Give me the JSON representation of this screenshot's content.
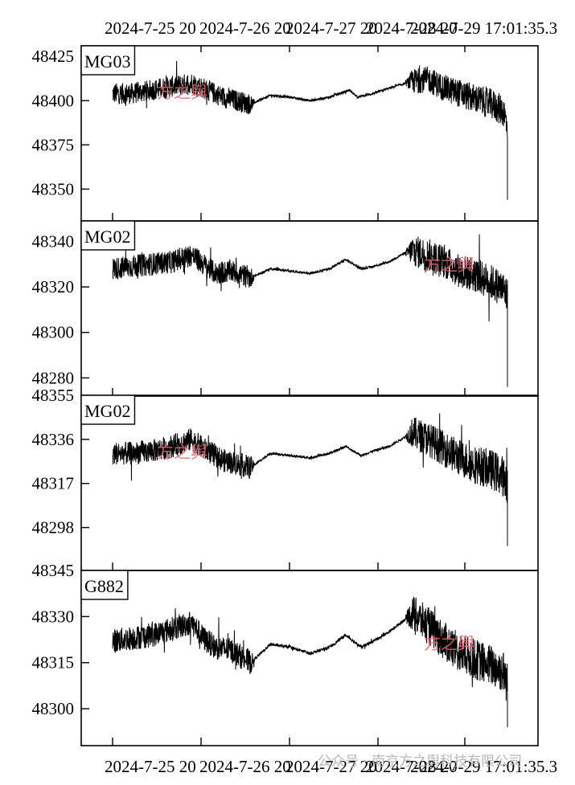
{
  "colors": {
    "trace": "#000000",
    "axis": "#000000",
    "watermark": "#e8656c",
    "footer_watermark": "#b8b8b8"
  },
  "chart_data": {
    "type": "line",
    "top_time_labels": [
      "2024-7-25 20",
      "2024-7-26 20",
      "2024-7-27 20",
      "2024-7-28 20",
      "2024-7-29 17:01:35.3"
    ],
    "bottom_time_labels": [
      "2024-7-25 20",
      "2024-7-26 20",
      "2024-7-27 20",
      "2024-7-28 20",
      "2024-7-29 17:01:35.3"
    ],
    "panels": [
      {
        "name": "MG03",
        "ylim": [
          48332,
          48431
        ],
        "yticks": [
          48425,
          48400,
          48375,
          48350
        ],
        "ytick_labels": [
          "48425",
          "48400",
          "48375",
          "48350"
        ],
        "watermark": "方之舆",
        "series": [
          {
            "name": "MG03",
            "x_start": 0,
            "x_end": 1,
            "baseline": [
              [
                0.0,
                48404
              ],
              [
                0.05,
                48404
              ],
              [
                0.1,
                48406
              ],
              [
                0.15,
                48408
              ],
              [
                0.2,
                48410
              ],
              [
                0.23,
                48407
              ],
              [
                0.28,
                48402
              ],
              [
                0.35,
                48398
              ],
              [
                0.4,
                48403
              ],
              [
                0.45,
                48402
              ],
              [
                0.5,
                48400
              ],
              [
                0.55,
                48402
              ],
              [
                0.6,
                48406
              ],
              [
                0.62,
                48402
              ],
              [
                0.66,
                48404
              ],
              [
                0.7,
                48407
              ],
              [
                0.73,
                48409
              ],
              [
                0.76,
                48411
              ],
              [
                0.8,
                48412
              ],
              [
                0.84,
                48407
              ],
              [
                0.88,
                48404
              ],
              [
                0.92,
                48401
              ],
              [
                0.96,
                48398
              ],
              [
                0.99,
                48394
              ],
              [
                1.0,
                48385
              ]
            ],
            "noise": [
              [
                0.0,
                6
              ],
              [
                0.35,
                6
              ],
              [
                0.36,
                0.7
              ],
              [
                0.74,
                0.7
              ],
              [
                0.76,
                7
              ],
              [
                1.0,
                9
              ]
            ],
            "spike": {
              "x": 1.0,
              "y": 48344
            }
          }
        ]
      },
      {
        "name": "MG02",
        "ylim": [
          48272,
          48349
        ],
        "yticks": [
          48340,
          48320,
          48300,
          48280
        ],
        "ytick_labels": [
          "48340",
          "48320",
          "48300",
          "48280"
        ],
        "watermark": "方之舆",
        "series": [
          {
            "name": "MG02",
            "x_start": 0,
            "x_end": 1,
            "baseline": [
              [
                0.0,
                48328
              ],
              [
                0.05,
                48329
              ],
              [
                0.1,
                48330
              ],
              [
                0.15,
                48331
              ],
              [
                0.2,
                48334
              ],
              [
                0.23,
                48330
              ],
              [
                0.26,
                48326
              ],
              [
                0.3,
                48327
              ],
              [
                0.35,
                48324
              ],
              [
                0.4,
                48328
              ],
              [
                0.45,
                48327
              ],
              [
                0.5,
                48326
              ],
              [
                0.55,
                48328
              ],
              [
                0.59,
                48332
              ],
              [
                0.63,
                48328
              ],
              [
                0.66,
                48329
              ],
              [
                0.7,
                48331
              ],
              [
                0.73,
                48334
              ],
              [
                0.76,
                48336
              ],
              [
                0.8,
                48334
              ],
              [
                0.84,
                48331
              ],
              [
                0.88,
                48327
              ],
              [
                0.92,
                48325
              ],
              [
                0.96,
                48322
              ],
              [
                0.99,
                48319
              ],
              [
                1.0,
                48316
              ]
            ],
            "noise": [
              [
                0.0,
                5
              ],
              [
                0.35,
                5
              ],
              [
                0.36,
                0.5
              ],
              [
                0.74,
                0.5
              ],
              [
                0.76,
                7
              ],
              [
                1.0,
                8
              ]
            ],
            "spike": {
              "x": 1.0,
              "y": 48276
            }
          }
        ]
      },
      {
        "name": "MG02",
        "ylim": [
          48279.5,
          48355
        ],
        "yticks": [
          48355,
          48336,
          48317,
          48298
        ],
        "ytick_labels": [
          "48355",
          "48336",
          "48317",
          "48298"
        ],
        "watermark": "方之舆",
        "series": [
          {
            "name": "MG02",
            "x_start": 0,
            "x_end": 1,
            "baseline": [
              [
                0.0,
                48330
              ],
              [
                0.05,
                48330
              ],
              [
                0.1,
                48331
              ],
              [
                0.15,
                48333
              ],
              [
                0.2,
                48336
              ],
              [
                0.23,
                48332
              ],
              [
                0.28,
                48327
              ],
              [
                0.35,
                48324
              ],
              [
                0.4,
                48330
              ],
              [
                0.45,
                48329
              ],
              [
                0.5,
                48328
              ],
              [
                0.55,
                48330
              ],
              [
                0.59,
                48333
              ],
              [
                0.63,
                48329
              ],
              [
                0.66,
                48331
              ],
              [
                0.7,
                48333
              ],
              [
                0.73,
                48336
              ],
              [
                0.76,
                48339
              ],
              [
                0.8,
                48336
              ],
              [
                0.84,
                48332
              ],
              [
                0.88,
                48328
              ],
              [
                0.92,
                48325
              ],
              [
                0.96,
                48323
              ],
              [
                0.99,
                48320
              ],
              [
                1.0,
                48317
              ]
            ],
            "noise": [
              [
                0.0,
                5
              ],
              [
                0.35,
                5
              ],
              [
                0.36,
                0.5
              ],
              [
                0.74,
                0.5
              ],
              [
                0.76,
                7
              ],
              [
                1.0,
                9
              ]
            ],
            "spike": {
              "x": 1.0,
              "y": 48290
            }
          }
        ]
      },
      {
        "name": "G882",
        "ylim": [
          48288,
          48345
        ],
        "yticks": [
          48345,
          48330,
          48315,
          48300
        ],
        "ytick_labels": [
          "48345",
          "48330",
          "48315",
          "48300"
        ],
        "watermark": "方之舆",
        "series": [
          {
            "name": "G882",
            "x_start": 0,
            "x_end": 1,
            "baseline": [
              [
                0.0,
                48322
              ],
              [
                0.05,
                48323
              ],
              [
                0.1,
                48324
              ],
              [
                0.15,
                48326
              ],
              [
                0.2,
                48328
              ],
              [
                0.23,
                48323
              ],
              [
                0.26,
                48320
              ],
              [
                0.3,
                48319
              ],
              [
                0.35,
                48315
              ],
              [
                0.4,
                48321
              ],
              [
                0.45,
                48320
              ],
              [
                0.5,
                48318
              ],
              [
                0.55,
                48320
              ],
              [
                0.59,
                48324
              ],
              [
                0.63,
                48320
              ],
              [
                0.66,
                48322
              ],
              [
                0.7,
                48325
              ],
              [
                0.73,
                48328
              ],
              [
                0.76,
                48331
              ],
              [
                0.8,
                48327
              ],
              [
                0.84,
                48322
              ],
              [
                0.88,
                48318
              ],
              [
                0.92,
                48316
              ],
              [
                0.96,
                48314
              ],
              [
                0.99,
                48312
              ],
              [
                1.0,
                48308
              ]
            ],
            "noise": [
              [
                0.0,
                4
              ],
              [
                0.35,
                4
              ],
              [
                0.36,
                0.5
              ],
              [
                0.74,
                0.5
              ],
              [
                0.76,
                6
              ],
              [
                1.0,
                7
              ]
            ],
            "spike": {
              "x": 1.0,
              "y": 48294
            }
          }
        ]
      }
    ]
  },
  "footer_watermark": "公众号 · 南京方之舆科技有限公司"
}
